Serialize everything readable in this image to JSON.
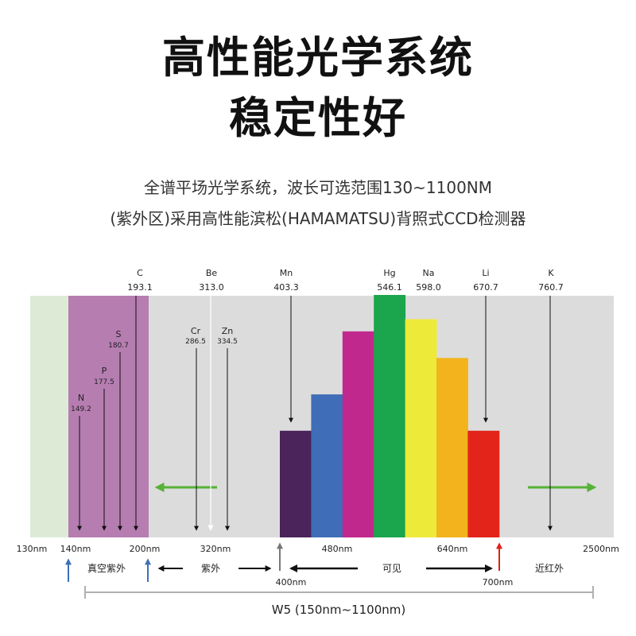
{
  "header": {
    "title_line1": "高性能光学系统",
    "title_line2": "稳定性好",
    "desc_line1": "全谱平场光学系统，波长可选范围130~1100NM",
    "desc_line2": "(紫外区)采用高性能滨松(HAMAMATSU)背照式CCD检测器"
  },
  "elements": [
    {
      "symbol": "C",
      "wavelength": "193.1"
    },
    {
      "symbol": "Be",
      "wavelength": "313.0"
    },
    {
      "symbol": "Mn",
      "wavelength": "403.3"
    },
    {
      "symbol": "Hg",
      "wavelength": "546.1"
    },
    {
      "symbol": "Na",
      "wavelength": "598.0"
    },
    {
      "symbol": "Li",
      "wavelength": "670.7"
    },
    {
      "symbol": "K",
      "wavelength": "760.7"
    },
    {
      "symbol": "S",
      "wavelength": "180.7"
    },
    {
      "symbol": "P",
      "wavelength": "177.5"
    },
    {
      "symbol": "N",
      "wavelength": "149.2"
    },
    {
      "symbol": "Cr",
      "wavelength": "286.5"
    },
    {
      "symbol": "Zn",
      "wavelength": "334.5"
    }
  ],
  "axis_ticks": [
    "130nm",
    "140nm",
    "200nm",
    "320nm",
    "480nm",
    "640nm",
    "2500nm"
  ],
  "markers": [
    "400nm",
    "700nm"
  ],
  "regions": {
    "vacuum_uv": "真空紫外",
    "uv": "紫外",
    "visible": "可见",
    "near_ir": "近红外"
  },
  "range_label": "W5 (150nm~1100nm)",
  "colors": {
    "background_band": "#dcdcdc",
    "vacuum_band": "#ddebd6",
    "uv_band": "#b67db1",
    "green_arrow": "#55b236",
    "blue_marker": "#3f6fb8",
    "red_marker": "#e0201a",
    "gray_marker": "#777777"
  },
  "spectrum_bars": [
    {
      "color": "#4b245c",
      "level": 0.44
    },
    {
      "color": "#3f6db7",
      "level": 0.59
    },
    {
      "color": "#c1288e",
      "level": 0.85
    },
    {
      "color": "#1ba54c",
      "level": 1.0
    },
    {
      "color": "#eeea3a",
      "level": 0.9
    },
    {
      "color": "#f2b31c",
      "level": 0.74
    },
    {
      "color": "#e2241b",
      "level": 0.44
    }
  ]
}
